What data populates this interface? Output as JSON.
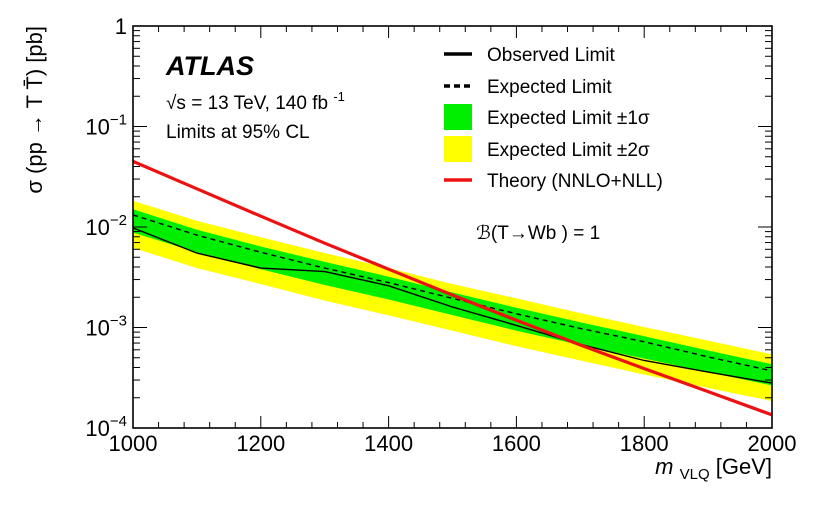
{
  "chart_data": {
    "type": "line",
    "title": "",
    "experiment": "ATLAS",
    "energy_text": "= 13 TeV, 140 fb",
    "energy_exponent": "-1",
    "energy_sqrt_symbol": "√s",
    "cl_text": "Limits at 95% CL",
    "branching_ratio_text": "ℬ(T→Wb ) = 1",
    "xlabel": "m",
    "xlabel_sub": "VLQ",
    "xlabel_unit": "[GeV]",
    "ylabel": "σ (pp → T T̄) [pb]",
    "xlim": [
      1000,
      2000
    ],
    "ylim": [
      0.0001,
      1
    ],
    "yscale": "log",
    "x_ticks": [
      "1000",
      "1200",
      "1400",
      "1600",
      "1800",
      "2000"
    ],
    "y_ticks": [
      {
        "base": "10",
        "exp": "−4"
      },
      {
        "base": "10",
        "exp": "−3"
      },
      {
        "base": "10",
        "exp": "−2"
      },
      {
        "base": "10",
        "exp": "−1"
      },
      {
        "base": "1",
        "exp": ""
      }
    ],
    "x": [
      1000,
      1100,
      1200,
      1300,
      1400,
      1500,
      1600,
      1700,
      1800,
      1900,
      2000
    ],
    "series": [
      {
        "name": "Observed Limit",
        "values": [
          0.0098,
          0.0055,
          0.0039,
          0.0036,
          0.0026,
          0.0016,
          0.00105,
          0.00068,
          0.00047,
          0.00036,
          0.00028
        ]
      },
      {
        "name": "Expected Limit",
        "values": [
          0.0132,
          0.0083,
          0.0056,
          0.0039,
          0.0028,
          0.00195,
          0.00137,
          0.00098,
          0.00072,
          0.00051,
          0.00037
        ]
      },
      {
        "name": "Theory (NNLO+NLL)",
        "values": [
          0.045,
          0.024,
          0.0128,
          0.0069,
          0.0038,
          0.0021,
          0.00118,
          0.00067,
          0.00039,
          0.00023,
          0.000135
        ]
      }
    ],
    "bands": [
      {
        "name": "Expected Limit ±2σ",
        "lower": [
          0.0062,
          0.0039,
          0.0027,
          0.00185,
          0.00132,
          0.00093,
          0.00065,
          0.00047,
          0.00034,
          0.00025,
          0.000185
        ],
        "upper": [
          0.0182,
          0.0115,
          0.0079,
          0.0055,
          0.0039,
          0.0027,
          0.00195,
          0.00139,
          0.00101,
          0.00074,
          0.00054
        ]
      },
      {
        "name": "Expected Limit ±1σ",
        "lower": [
          0.0088,
          0.0056,
          0.0038,
          0.00265,
          0.0019,
          0.00133,
          0.00093,
          0.00067,
          0.00049,
          0.00036,
          0.000265
        ],
        "upper": [
          0.015,
          0.0094,
          0.0064,
          0.0045,
          0.0032,
          0.00223,
          0.00157,
          0.00113,
          0.00082,
          0.00059,
          0.00043
        ]
      }
    ],
    "legend": [
      {
        "label": "Observed Limit",
        "style": "solid"
      },
      {
        "label": "Expected Limit",
        "style": "dashed"
      },
      {
        "label": "Expected Limit ±1σ",
        "style": "band1"
      },
      {
        "label": "Expected Limit ±2σ",
        "style": "band2"
      },
      {
        "label": "Theory (NNLO+NLL)",
        "style": "theory"
      }
    ],
    "colors": {
      "observed": "#000000",
      "expected": "#000000",
      "band1": "#00ee00",
      "band2": "#ffff00",
      "theory": "#ee1111"
    }
  }
}
